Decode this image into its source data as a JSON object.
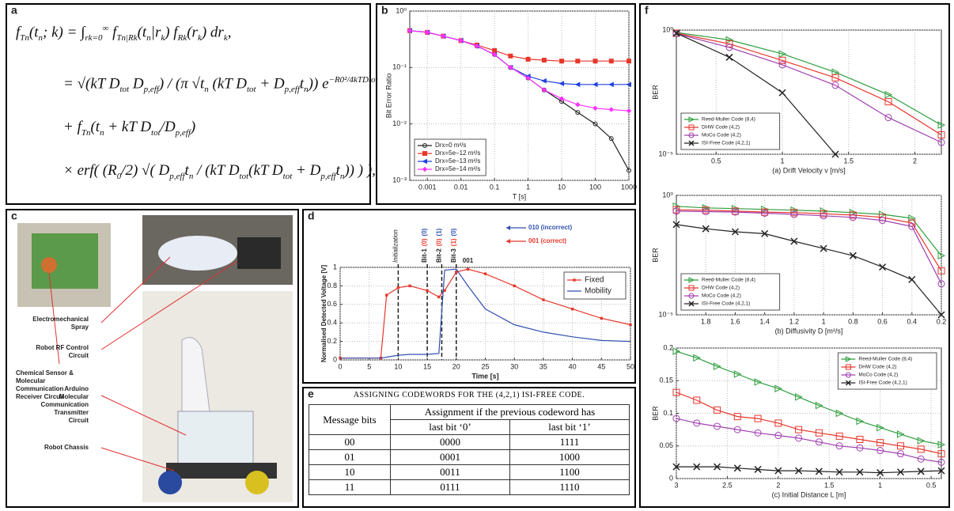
{
  "panels": [
    "a",
    "b",
    "c",
    "d",
    "e",
    "f"
  ],
  "equation": [
    [
      [
        "f",
        ""
      ],
      [
        "Tn",
        "sub"
      ],
      [
        "(t",
        ""
      ],
      [
        "n",
        "sub"
      ],
      [
        "; k) = ∫",
        ""
      ],
      [
        "rk=0",
        "sub"
      ],
      [
        "∞",
        "sup"
      ],
      [
        " f",
        ""
      ],
      [
        "Tn|Rk",
        "sub"
      ],
      [
        "(t",
        ""
      ],
      [
        "n",
        "sub"
      ],
      [
        "|r",
        ""
      ],
      [
        "k",
        "sub"
      ],
      [
        ") f",
        ""
      ],
      [
        "Rk",
        "sub"
      ],
      [
        "(r",
        ""
      ],
      [
        "k",
        "sub"
      ],
      [
        ") dr",
        ""
      ],
      [
        "k",
        "sub"
      ],
      [
        ",",
        ""
      ]
    ],
    [
      [
        "= √(kT D",
        ""
      ],
      [
        "tot",
        "sub"
      ],
      [
        " D",
        ""
      ],
      [
        "p,eff",
        "sub"
      ],
      [
        ") / (π √t",
        ""
      ],
      [
        "n",
        "sub"
      ],
      [
        " (kT D",
        ""
      ],
      [
        "tot",
        "sub"
      ],
      [
        " + D",
        ""
      ],
      [
        "p,eff",
        "sub"
      ],
      [
        "t",
        ""
      ],
      [
        "n",
        "sub"
      ],
      [
        ")) e",
        ""
      ],
      [
        "−R0²/4kTDtot",
        "sup"
      ]
    ],
    [
      [
        "+ f",
        ""
      ],
      [
        "Tn",
        "sub"
      ],
      [
        "(t",
        ""
      ],
      [
        "n",
        "sub"
      ],
      [
        " + kT D",
        ""
      ],
      [
        "tot",
        "sub"
      ],
      [
        "/D",
        ""
      ],
      [
        "p,eff",
        "sub"
      ],
      [
        ")",
        ""
      ]
    ],
    [
      [
        "× erf( (R",
        ""
      ],
      [
        "0",
        "sub"
      ],
      [
        "/2) √( D",
        ""
      ],
      [
        "p,eff",
        "sub"
      ],
      [
        "t",
        ""
      ],
      [
        "n",
        "sub"
      ],
      [
        " / (kT D",
        ""
      ],
      [
        "tot",
        "sub"
      ],
      [
        "(kT D",
        ""
      ],
      [
        "tot",
        "sub"
      ],
      [
        " + D",
        ""
      ],
      [
        "p,eff",
        "sub"
      ],
      [
        "t",
        ""
      ],
      [
        "n",
        "sub"
      ],
      [
        ")) ) ),",
        ""
      ]
    ]
  ],
  "photo": {
    "labels": [
      "Chemical Sensor & Molecular Communication Receiver Circuit",
      "Electromechanical Spray",
      "Robot RF Control Circuit",
      "Arduino Molecular Communication Transmitter Circuit",
      "Robot Chassis"
    ]
  },
  "table": {
    "caption": "ASSIGNING CODEWORDS FOR THE (4,2,1) ISI-FREE CODE.",
    "header": [
      "Message bits",
      "Assignment if the previous codeword has"
    ],
    "subheader": [
      "last bit ‘0’",
      "last bit ‘1’"
    ],
    "rows": [
      [
        "00",
        "0000",
        "1111"
      ],
      [
        "01",
        "0001",
        "1000"
      ],
      [
        "10",
        "0011",
        "1100"
      ],
      [
        "11",
        "0111",
        "1110"
      ]
    ]
  },
  "chart_data": [
    {
      "type": "line",
      "xscale": "log",
      "yscale": "log",
      "xlabel": "T [s]",
      "ylabel": "Bit Error Ratio",
      "grid": true,
      "legend": "lower left",
      "xlim": [
        0.0003,
        1000
      ],
      "ylim": [
        0.001,
        1
      ],
      "xticks": [
        0.001,
        0.01,
        0.1,
        1,
        10,
        100,
        1000
      ],
      "yticks": [
        {
          "value": 0.001,
          "label": "10⁻³"
        },
        {
          "value": 0.01,
          "label": "10⁻²"
        },
        {
          "value": 0.1,
          "label": "10⁻¹"
        },
        {
          "value": 1,
          "label": "10⁰"
        }
      ],
      "x": [
        0.0003,
        0.001,
        0.003,
        0.01,
        0.03,
        0.1,
        0.3,
        1,
        3,
        10,
        30,
        100,
        300,
        1000
      ],
      "series": [
        {
          "name": "Drx=0 m²/s",
          "color": "#222222",
          "marker": "o",
          "filled": false,
          "values": [
            0.45,
            0.42,
            0.36,
            0.3,
            0.24,
            0.17,
            0.1,
            0.065,
            0.04,
            0.025,
            0.016,
            0.01,
            0.0055,
            0.0015
          ]
        },
        {
          "name": "Drx=5e−12 m²/s",
          "color": "#e8372c",
          "marker": "s",
          "filled": true,
          "values": [
            0.45,
            0.42,
            0.36,
            0.3,
            0.25,
            0.2,
            0.16,
            0.14,
            0.135,
            0.13,
            0.13,
            0.13,
            0.13,
            0.13
          ]
        },
        {
          "name": "Drx=5e−13 m²/s",
          "color": "#2040e0",
          "marker": "<",
          "filled": true,
          "values": [
            0.45,
            0.42,
            0.36,
            0.3,
            0.24,
            0.17,
            0.1,
            0.07,
            0.058,
            0.052,
            0.05,
            0.05,
            0.05,
            0.05
          ]
        },
        {
          "name": "Drx=5e−14 m²/s",
          "color": "#ff33ff",
          "marker": "d",
          "filled": true,
          "values": [
            0.45,
            0.42,
            0.36,
            0.3,
            0.24,
            0.17,
            0.1,
            0.065,
            0.04,
            0.028,
            0.022,
            0.019,
            0.018,
            0.017
          ]
        }
      ]
    },
    {
      "type": "line",
      "xscale": "linear",
      "yscale": "linear",
      "xlabel": "Time [s]",
      "ylabel": "Normalised Detected Voltage [V]",
      "grid": true,
      "legend": "upper right",
      "xlim": [
        0,
        50
      ],
      "ylim": [
        0,
        1
      ],
      "xticks": [
        0,
        5,
        10,
        15,
        20,
        25,
        30,
        35,
        40,
        45,
        50
      ],
      "yticks": [
        0,
        0.2,
        0.4,
        0.6,
        0.8,
        1
      ],
      "x": [
        0,
        7,
        8,
        10,
        12,
        15,
        17,
        18,
        20,
        22,
        25,
        30,
        35,
        40,
        45,
        50
      ],
      "series": [
        {
          "name": "Fixed",
          "color": "#e8372c",
          "marker": "s",
          "filled": true,
          "values": [
            0.02,
            0.02,
            0.7,
            0.78,
            0.8,
            0.75,
            0.68,
            0.75,
            0.95,
            0.98,
            0.93,
            0.8,
            0.65,
            0.55,
            0.45,
            0.38
          ]
        },
        {
          "name": "Mobility",
          "color": "#3050b0",
          "marker": null,
          "filled": false,
          "values": [
            0.02,
            0.02,
            0.03,
            0.05,
            0.06,
            0.06,
            0.07,
            0.97,
            0.98,
            0.8,
            0.55,
            0.38,
            0.3,
            0.25,
            0.21,
            0.2
          ]
        }
      ],
      "vlines": [
        {
          "x": 10,
          "label": "Initialization"
        },
        {
          "x": 15,
          "label": "Bit-1",
          "fixed": "(0)",
          "mobility": "(0)"
        },
        {
          "x": 17.5,
          "label": "Bit-2",
          "fixed": "(0)",
          "mobility": "(1)"
        },
        {
          "x": 20,
          "label": "Bit-3",
          "fixed": "(1)",
          "mobility": "(0)"
        }
      ],
      "annotations": [
        {
          "text": "010 (incorrect)",
          "color": "#3050b0"
        },
        {
          "text": "001 (correct)",
          "color": "#e8372c"
        },
        {
          "text": "001",
          "color": "#222222"
        }
      ]
    },
    {
      "type": "line",
      "xscale": "linear",
      "yscale": "log",
      "xlabel": "(a) Drift Velocity v [m/s]",
      "ylabel": "BER",
      "grid": true,
      "legend": "lower left",
      "xlim": [
        0.2,
        2.2
      ],
      "ylim": [
        1e-05,
        1
      ],
      "xticks": [
        0.5,
        1,
        1.5,
        2
      ],
      "yticks": [
        {
          "value": 1e-05,
          "label": "10⁻⁵"
        },
        {
          "value": 1,
          "label": "10⁰"
        }
      ],
      "x": [
        0.2,
        0.6,
        1,
        1.4,
        1.8,
        2.2
      ],
      "series": [
        {
          "name": "Reed-Muller Code (8,4)",
          "color": "#2e9e3e",
          "marker": ">",
          "filled": false,
          "values": [
            0.8,
            0.4,
            0.11,
            0.02,
            0.0025,
            0.00015
          ]
        },
        {
          "name": "DHW Code (4,2)",
          "color": "#e8372c",
          "marker": "s",
          "filled": false,
          "values": [
            0.75,
            0.28,
            0.06,
            0.012,
            0.0013,
            6e-05
          ]
        },
        {
          "name": "MoCo Code (4,2)",
          "color": "#a040b0",
          "marker": "o",
          "filled": false,
          "values": [
            0.72,
            0.2,
            0.04,
            0.006,
            0.0003,
            3e-05
          ]
        },
        {
          "name": "ISI-Free Code (4,2,1)",
          "color": "#222222",
          "marker": "x",
          "filled": false,
          "values": [
            0.75,
            0.08,
            0.003,
            1e-05,
            null,
            null
          ]
        }
      ]
    },
    {
      "type": "line",
      "xscale": "linear",
      "yscale": "log",
      "xlabel": "(b) Diffusivity D [m²/s]",
      "ylabel": "BER",
      "grid": true,
      "legend": "lower left",
      "xlim": [
        2,
        0.2
      ],
      "ylim": [
        1e-05,
        1
      ],
      "xticks": [
        1.8,
        1.6,
        1.4,
        1.2,
        1,
        0.8,
        0.6,
        0.4,
        0.2
      ],
      "yticks": [
        {
          "value": 1e-05,
          "label": "10⁻⁵"
        },
        {
          "value": 1,
          "label": "10⁰"
        }
      ],
      "x": [
        2,
        1.8,
        1.6,
        1.4,
        1.2,
        1,
        0.8,
        0.6,
        0.4,
        0.2
      ],
      "series": [
        {
          "name": "Reed-Muller Code (8,4)",
          "color": "#2e9e3e",
          "marker": ">",
          "filled": false,
          "values": [
            0.35,
            0.3,
            0.28,
            0.26,
            0.24,
            0.22,
            0.19,
            0.16,
            0.11,
            0.003
          ]
        },
        {
          "name": "DHW Code (4,2)",
          "color": "#e8372c",
          "marker": "s",
          "filled": false,
          "values": [
            0.25,
            0.24,
            0.22,
            0.2,
            0.19,
            0.17,
            0.15,
            0.12,
            0.07,
            0.0007
          ]
        },
        {
          "name": "MoCo Code (4,2)",
          "color": "#a040b0",
          "marker": "o",
          "filled": false,
          "values": [
            0.22,
            0.21,
            0.2,
            0.18,
            0.16,
            0.14,
            0.12,
            0.09,
            0.05,
            0.0002
          ]
        },
        {
          "name": "ISI-Free Code (4,2,1)",
          "color": "#222222",
          "marker": "x",
          "filled": false,
          "values": [
            0.06,
            0.04,
            0.03,
            0.025,
            0.012,
            0.006,
            0.003,
            0.001,
            0.0003,
            1e-05
          ]
        }
      ]
    },
    {
      "type": "line",
      "xscale": "linear",
      "yscale": "linear",
      "xlabel": "(c) Initial Distance L [m]",
      "ylabel": "BER",
      "grid": true,
      "legend": "upper right",
      "xlim": [
        3,
        0.4
      ],
      "ylim": [
        0,
        0.2
      ],
      "xticks": [
        3,
        2.5,
        2,
        1.5,
        1,
        0.5
      ],
      "yticks": [
        0,
        0.05,
        0.1,
        0.15,
        0.2
      ],
      "x": [
        3,
        2.8,
        2.6,
        2.4,
        2.2,
        2,
        1.8,
        1.6,
        1.4,
        1.2,
        1,
        0.8,
        0.6,
        0.4
      ],
      "series": [
        {
          "name": "Reed-Muller Code (8,4)",
          "color": "#2e9e3e",
          "marker": ">",
          "filled": false,
          "values": [
            0.195,
            0.185,
            0.172,
            0.16,
            0.148,
            0.138,
            0.125,
            0.112,
            0.1,
            0.088,
            0.078,
            0.068,
            0.058,
            0.052
          ]
        },
        {
          "name": "DHW Code (4,2)",
          "color": "#e8372c",
          "marker": "s",
          "filled": false,
          "values": [
            0.132,
            0.12,
            0.105,
            0.095,
            0.092,
            0.085,
            0.075,
            0.07,
            0.065,
            0.06,
            0.055,
            0.05,
            0.045,
            0.038
          ]
        },
        {
          "name": "MoCo Code (4,2)",
          "color": "#a040b0",
          "marker": "o",
          "filled": false,
          "values": [
            0.092,
            0.085,
            0.08,
            0.075,
            0.07,
            0.066,
            0.062,
            0.056,
            0.05,
            0.047,
            0.043,
            0.038,
            0.03,
            0.025
          ]
        },
        {
          "name": "ISI-Free Code (4,2,1)",
          "color": "#222222",
          "marker": "x",
          "filled": false,
          "values": [
            0.018,
            0.018,
            0.018,
            0.016,
            0.014,
            0.012,
            0.012,
            0.011,
            0.01,
            0.01,
            0.009,
            0.01,
            0.011,
            0.012
          ]
        }
      ]
    }
  ]
}
